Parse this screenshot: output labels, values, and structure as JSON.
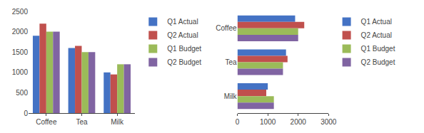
{
  "chart_data": [
    {
      "type": "bar",
      "categories": [
        "Coffee",
        "Tea",
        "Milk"
      ],
      "series": [
        {
          "name": "Q1 Actual",
          "color": "#4472C4",
          "values": [
            1900,
            1600,
            1000
          ]
        },
        {
          "name": "Q2 Actual",
          "color": "#C0504D",
          "values": [
            2200,
            1650,
            950
          ]
        },
        {
          "name": "Q1 Budget",
          "color": "#9BBB59",
          "values": [
            2000,
            1500,
            1200
          ]
        },
        {
          "name": "Q2 Budget",
          "color": "#8064A2",
          "values": [
            2000,
            1500,
            1200
          ]
        }
      ],
      "ylim": [
        0,
        2500
      ],
      "yticks": [
        0,
        500,
        1000,
        1500,
        2000,
        2500
      ],
      "grid": false,
      "legend": "right"
    },
    {
      "type": "bar",
      "orientation": "horizontal",
      "categories": [
        "Coffee",
        "Tea",
        "Milk"
      ],
      "series": [
        {
          "name": "Q1 Actual",
          "color": "#4472C4",
          "values": [
            1900,
            1600,
            1000
          ]
        },
        {
          "name": "Q2 Actual",
          "color": "#C0504D",
          "values": [
            2200,
            1650,
            950
          ]
        },
        {
          "name": "Q1 Budget",
          "color": "#9BBB59",
          "values": [
            2000,
            1500,
            1200
          ]
        },
        {
          "name": "Q2 Budget",
          "color": "#8064A2",
          "values": [
            2000,
            1500,
            1200
          ]
        }
      ],
      "xlim": [
        0,
        3000
      ],
      "xticks": [
        0,
        1000,
        2000,
        3000
      ],
      "grid": false,
      "legend": "right"
    }
  ]
}
